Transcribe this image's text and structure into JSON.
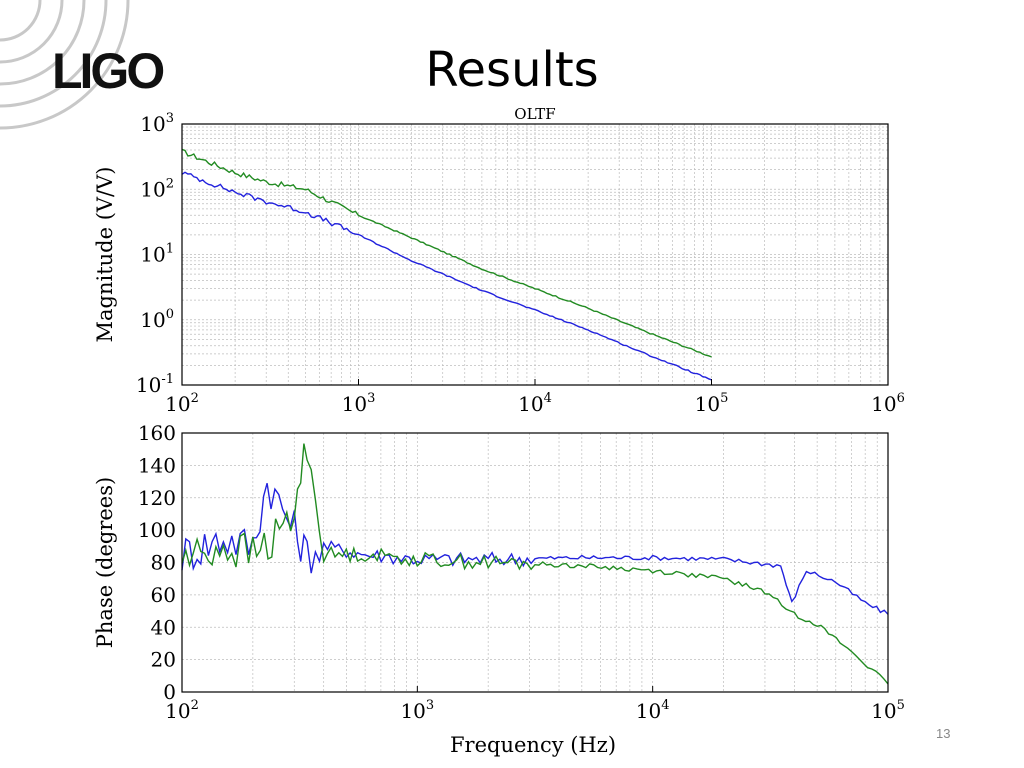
{
  "slide": {
    "logo_text": "LIGO",
    "title": "Results",
    "page_number": "13"
  },
  "chart_data": [
    {
      "type": "line",
      "title": "OLTF",
      "xlabel": "",
      "ylabel": "Magnitude (V/V)",
      "x_scale": "log",
      "y_scale": "log",
      "xlim": [
        100,
        1000000
      ],
      "ylim": [
        0.1,
        1000
      ],
      "x_ticks": [
        {
          "base": "10",
          "exp": "2"
        },
        {
          "base": "10",
          "exp": "3"
        },
        {
          "base": "10",
          "exp": "4"
        },
        {
          "base": "10",
          "exp": "5"
        },
        {
          "base": "10",
          "exp": "6"
        }
      ],
      "y_ticks": [
        {
          "base": "10",
          "exp": "-1"
        },
        {
          "base": "10",
          "exp": "0"
        },
        {
          "base": "10",
          "exp": "1"
        },
        {
          "base": "10",
          "exp": "2"
        },
        {
          "base": "10",
          "exp": "3"
        }
      ],
      "grid": true,
      "series": [
        {
          "color": "#228b22",
          "x": [
            100,
            200,
            300,
            500,
            1000,
            2000,
            5000,
            10000,
            20000,
            40000,
            100000
          ],
          "y": [
            380,
            180,
            130,
            100,
            40,
            18,
            6,
            3,
            1.5,
            0.7,
            0.27
          ]
        },
        {
          "color": "#2222dd",
          "x": [
            100,
            200,
            300,
            500,
            1000,
            2000,
            5000,
            10000,
            20000,
            40000,
            100000
          ],
          "y": [
            180,
            90,
            65,
            45,
            20,
            8,
            2.8,
            1.4,
            0.7,
            0.32,
            0.12
          ]
        }
      ]
    },
    {
      "type": "line",
      "title": "",
      "xlabel": "Frequency (Hz)",
      "ylabel": "Phase (degrees)",
      "x_scale": "log",
      "y_scale": "linear",
      "xlim": [
        100,
        100000
      ],
      "ylim": [
        0,
        160
      ],
      "x_ticks": [
        {
          "base": "10",
          "exp": "2"
        },
        {
          "base": "10",
          "exp": "3"
        },
        {
          "base": "10",
          "exp": "4"
        },
        {
          "base": "10",
          "exp": "5"
        }
      ],
      "y_ticks": [
        0,
        20,
        40,
        60,
        80,
        100,
        120,
        140,
        160
      ],
      "grid": true,
      "series": [
        {
          "color": "#2222dd",
          "x": [
            100,
            150,
            200,
            230,
            300,
            340,
            400,
            600,
            1000,
            2000,
            5000,
            10000,
            20000,
            35000,
            39000,
            45000,
            60000,
            80000,
            100000
          ],
          "y": [
            85,
            95,
            90,
            130,
            100,
            85,
            90,
            85,
            82,
            82,
            83,
            83,
            82,
            78,
            55,
            75,
            68,
            55,
            48
          ]
        },
        {
          "color": "#228b22",
          "x": [
            100,
            150,
            200,
            250,
            300,
            340,
            400,
            600,
            1000,
            2000,
            5000,
            10000,
            20000,
            30000,
            40000,
            50000,
            70000,
            100000
          ],
          "y": [
            82,
            90,
            85,
            95,
            110,
            155,
            85,
            85,
            82,
            80,
            78,
            75,
            70,
            62,
            48,
            42,
            25,
            5
          ]
        }
      ]
    }
  ]
}
